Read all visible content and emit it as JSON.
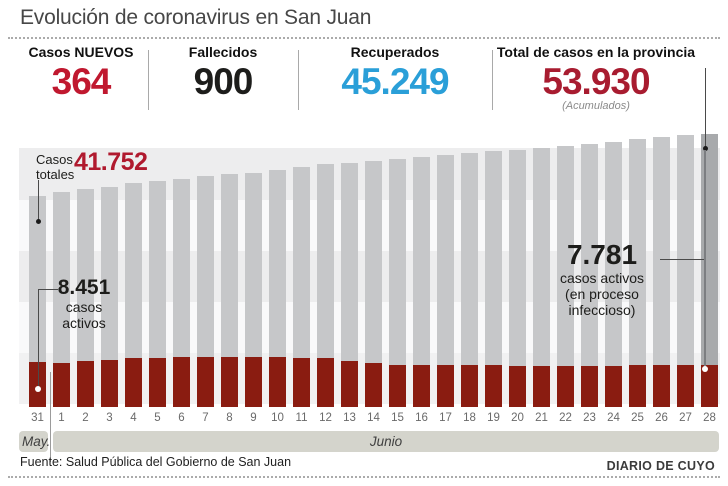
{
  "header": {
    "title": "Evolución de coronavirus en San Juan",
    "stats": [
      {
        "label": "Casos NUEVOS",
        "value": "364",
        "color": "#c0182f"
      },
      {
        "label": "Fallecidos",
        "value": "900",
        "color": "#1d1d1b"
      },
      {
        "label": "Recuperados",
        "value": "45.249",
        "color": "#2a9fd8"
      },
      {
        "label": "Total de casos en la provincia",
        "value": "53.930",
        "note": "(Acumulados)",
        "color": "#a81c30"
      }
    ]
  },
  "chart_data": {
    "type": "bar",
    "title": "Evolución de coronavirus en San Juan",
    "categories": [
      "31",
      "1",
      "2",
      "3",
      "4",
      "5",
      "6",
      "7",
      "8",
      "9",
      "10",
      "11",
      "12",
      "13",
      "14",
      "15",
      "16",
      "17",
      "18",
      "19",
      "20",
      "21",
      "22",
      "23",
      "24",
      "25",
      "26",
      "27",
      "28"
    ],
    "x_axis": {
      "months": [
        {
          "label": "May.",
          "days": 1
        },
        {
          "label": "Junio",
          "days": 28
        }
      ]
    },
    "ylim": [
      0,
      53930
    ],
    "grid": false,
    "legend_position": "none",
    "series": [
      {
        "name": "Casos totales",
        "color": "#c6c7c9",
        "last_bar_color": "#a8aaac",
        "values": [
          41752,
          42540,
          43130,
          43530,
          44320,
          44715,
          45110,
          45705,
          46100,
          46300,
          46890,
          47480,
          48075,
          48270,
          48670,
          49065,
          49460,
          49860,
          50255,
          50650,
          50850,
          51245,
          51640,
          52040,
          52435,
          53030,
          53425,
          53820,
          53930
        ]
      },
      {
        "name": "Casos activos",
        "color": "#8a1c11",
        "values": [
          8451,
          8150,
          8630,
          8800,
          9150,
          9150,
          9330,
          9330,
          9330,
          9330,
          9330,
          9150,
          9150,
          8680,
          8270,
          7900,
          7850,
          7800,
          7780,
          7760,
          7750,
          7750,
          7740,
          7740,
          7750,
          7760,
          7770,
          7780,
          7781
        ]
      }
    ],
    "annotations": {
      "first_total": {
        "label_lines": [
          "Casos",
          "totales"
        ],
        "value": "41.752",
        "value_color": "#b0192e"
      },
      "first_active": {
        "value": "8.451",
        "lines": [
          "casos",
          "activos"
        ]
      },
      "last_active": {
        "value": "7.781",
        "lines": [
          "casos activos",
          "(en proceso",
          "infeccioso)"
        ]
      }
    }
  },
  "footer": {
    "source": "Fuente: Salud Pública del Gobierno de San Juan",
    "credit": "DIARIO DE CUYO"
  }
}
